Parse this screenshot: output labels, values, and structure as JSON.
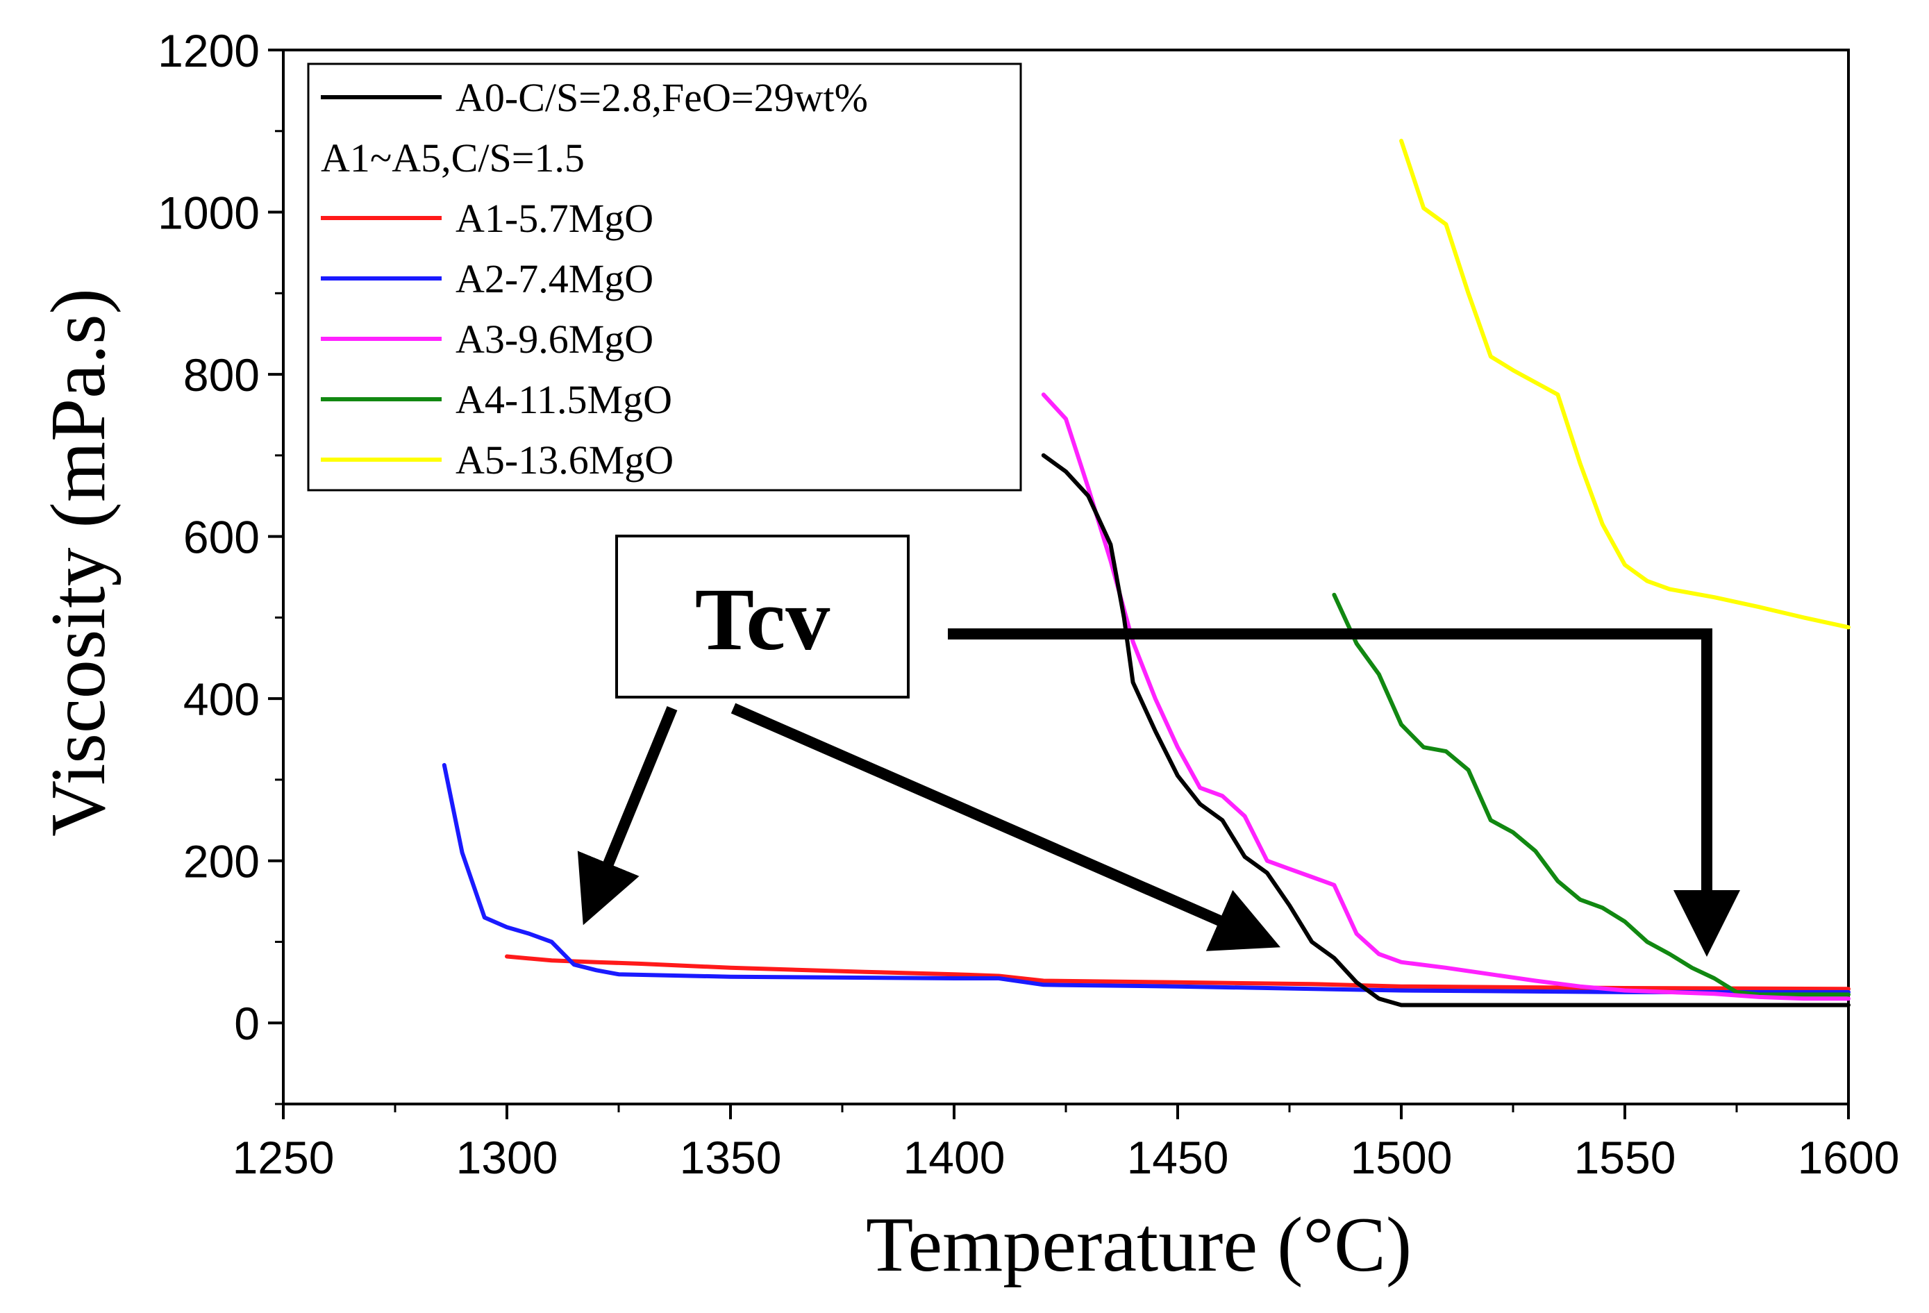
{
  "chart_data": {
    "type": "line",
    "title": "",
    "xlabel": "Temperature (°C)",
    "ylabel": "Viscosity (mPa.s)",
    "xlim": [
      1250,
      1600
    ],
    "ylim": [
      -100,
      1200
    ],
    "xticks": [
      1250,
      1300,
      1350,
      1400,
      1450,
      1500,
      1550,
      1600
    ],
    "yticks": [
      0,
      200,
      400,
      600,
      800,
      1000,
      1200
    ],
    "xtick_labels": [
      "1250",
      "1300",
      "1350",
      "1400",
      "1450",
      "1500",
      "1550",
      "1600"
    ],
    "ytick_labels": [
      "0",
      "200",
      "400",
      "600",
      "800",
      "1000",
      "1200"
    ],
    "grid": false,
    "legend_position": "top-left",
    "legend_note": "A1~A5,C/S=1.5",
    "series": [
      {
        "name": "A0-C/S=2.8,FeO=29wt%",
        "color": "#000000",
        "x": [
          1420,
          1425,
          1430,
          1435,
          1438,
          1440,
          1445,
          1450,
          1455,
          1460,
          1465,
          1470,
          1475,
          1480,
          1485,
          1490,
          1495,
          1500,
          1550,
          1600
        ],
        "y": [
          700,
          680,
          650,
          590,
          500,
          420,
          360,
          305,
          270,
          250,
          205,
          185,
          145,
          100,
          80,
          50,
          30,
          22,
          22,
          22
        ]
      },
      {
        "name": "A1-5.7MgO",
        "color": "#ff1a1a",
        "x": [
          1300,
          1310,
          1320,
          1330,
          1350,
          1380,
          1400,
          1410,
          1420,
          1450,
          1480,
          1500,
          1550,
          1600
        ],
        "y": [
          82,
          77,
          75,
          73,
          68,
          63,
          60,
          58,
          52,
          50,
          48,
          45,
          43,
          42
        ]
      },
      {
        "name": "A2-7.4MgO",
        "color": "#1a1aff",
        "x": [
          1286,
          1290,
          1295,
          1300,
          1305,
          1310,
          1315,
          1320,
          1325,
          1350,
          1400,
          1410,
          1420,
          1450,
          1500,
          1550,
          1600
        ],
        "y": [
          318,
          210,
          130,
          118,
          110,
          100,
          72,
          65,
          60,
          57,
          55,
          55,
          47,
          45,
          40,
          38,
          38
        ]
      },
      {
        "name": "A3-9.6MgO",
        "color": "#ff22ff",
        "x": [
          1420,
          1425,
          1430,
          1435,
          1440,
          1445,
          1450,
          1455,
          1460,
          1465,
          1470,
          1475,
          1480,
          1485,
          1490,
          1495,
          1500,
          1510,
          1520,
          1530,
          1540,
          1550,
          1560,
          1570,
          1580,
          1590,
          1600
        ],
        "y": [
          775,
          745,
          660,
          570,
          470,
          400,
          340,
          290,
          280,
          255,
          200,
          190,
          180,
          170,
          110,
          85,
          75,
          68,
          60,
          52,
          45,
          40,
          38,
          36,
          32,
          30,
          30
        ]
      },
      {
        "name": "A4-11.5MgO",
        "color": "#118811",
        "x": [
          1485,
          1490,
          1495,
          1500,
          1505,
          1510,
          1515,
          1520,
          1525,
          1530,
          1535,
          1540,
          1545,
          1550,
          1555,
          1560,
          1565,
          1570,
          1575,
          1580,
          1600
        ],
        "y": [
          528,
          468,
          430,
          368,
          340,
          335,
          312,
          250,
          235,
          212,
          175,
          152,
          142,
          125,
          100,
          85,
          68,
          55,
          38,
          35,
          35
        ]
      },
      {
        "name": "A5-13.6MgO",
        "color": "#ffff00",
        "x": [
          1500,
          1505,
          1510,
          1515,
          1520,
          1525,
          1530,
          1535,
          1540,
          1545,
          1550,
          1555,
          1560,
          1570,
          1580,
          1590,
          1600
        ],
        "y": [
          1088,
          1005,
          985,
          900,
          822,
          805,
          790,
          775,
          690,
          615,
          565,
          545,
          535,
          525,
          513,
          500,
          488
        ]
      }
    ],
    "annotations": [
      {
        "text": "Tcv"
      }
    ]
  }
}
